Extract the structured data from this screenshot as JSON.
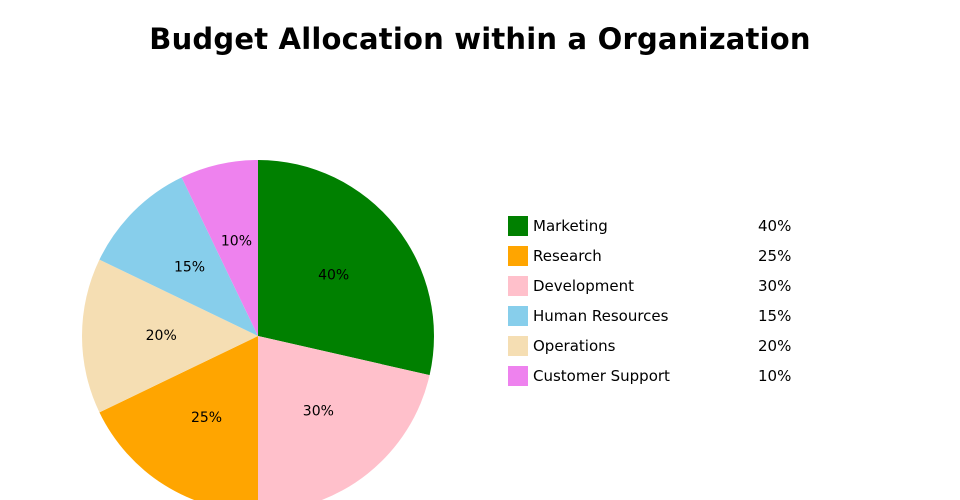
{
  "chart_data": {
    "type": "pie",
    "title": "Budget Allocation within a Organization",
    "slices": [
      {
        "label": "Marketing",
        "value": 40,
        "value_label": "40%",
        "color": "#008000"
      },
      {
        "label": "Research",
        "value": 25,
        "value_label": "25%",
        "color": "#FFA500"
      },
      {
        "label": "Development",
        "value": 30,
        "value_label": "30%",
        "color": "#FFC0CB"
      },
      {
        "label": "Human Resources",
        "value": 15,
        "value_label": "15%",
        "color": "#87CEEB"
      },
      {
        "label": "Operations",
        "value": 20,
        "value_label": "20%",
        "color": "#F5DEB3"
      },
      {
        "label": "Customer Support",
        "value": 10,
        "value_label": "10%",
        "color": "#EE82EE"
      }
    ],
    "slice_order": [
      "Marketing",
      "Development",
      "Research",
      "Operations",
      "Human Resources",
      "Customer Support"
    ],
    "legend_position": "right"
  }
}
